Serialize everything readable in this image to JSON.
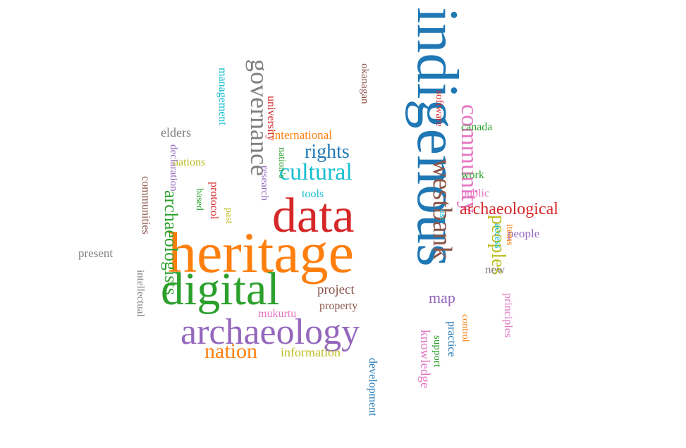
{
  "words": [
    {
      "text": "indigenous",
      "color": "#1f77b4",
      "vertical": true
    },
    {
      "text": "heritage",
      "color": "#ff7f0e",
      "vertical": false
    },
    {
      "text": "data",
      "color": "#d62728",
      "vertical": false
    },
    {
      "text": "digital",
      "color": "#2ca02c",
      "vertical": false
    },
    {
      "text": "archaeology",
      "color": "#9467bd",
      "vertical": false
    },
    {
      "text": "westbank",
      "color": "#8c564b",
      "vertical": true
    },
    {
      "text": "community",
      "color": "#e377c2",
      "vertical": true
    },
    {
      "text": "governance",
      "color": "#7f7f7f",
      "vertical": true
    },
    {
      "text": "peoples",
      "color": "#bcbd22",
      "vertical": true
    },
    {
      "text": "cultural",
      "color": "#17becf",
      "vertical": false
    },
    {
      "text": "rights",
      "color": "#1f77b4",
      "vertical": false
    },
    {
      "text": "nation",
      "color": "#ff7f0e",
      "vertical": false
    },
    {
      "text": "archaeologists",
      "color": "#2ca02c",
      "vertical": true
    },
    {
      "text": "archaeological",
      "color": "#d62728",
      "vertical": false
    },
    {
      "text": "map",
      "color": "#9467bd",
      "vertical": false
    },
    {
      "text": "project",
      "color": "#8c564b",
      "vertical": false
    },
    {
      "text": "knowledge",
      "color": "#e377c2",
      "vertical": true
    },
    {
      "text": "new",
      "color": "#7f7f7f",
      "vertical": false
    },
    {
      "text": "information",
      "color": "#bcbd22",
      "vertical": false
    },
    {
      "text": "management",
      "color": "#17becf",
      "vertical": true
    },
    {
      "text": "development",
      "color": "#1f77b4",
      "vertical": true
    },
    {
      "text": "international",
      "color": "#ff7f0e",
      "vertical": false
    },
    {
      "text": "support",
      "color": "#2ca02c",
      "vertical": true
    },
    {
      "text": "university",
      "color": "#d62728",
      "vertical": true
    },
    {
      "text": "people",
      "color": "#9467bd",
      "vertical": false
    },
    {
      "text": "property",
      "color": "#8c564b",
      "vertical": false
    },
    {
      "text": "principles",
      "color": "#e377c2",
      "vertical": true
    },
    {
      "text": "elders",
      "color": "#7f7f7f",
      "vertical": false
    },
    {
      "text": "nations",
      "color": "#bcbd22",
      "vertical": false
    },
    {
      "text": "access",
      "color": "#17becf",
      "vertical": true
    },
    {
      "text": "practice",
      "color": "#1f77b4",
      "vertical": true
    },
    {
      "text": "control",
      "color": "#ff7f0e",
      "vertical": true
    },
    {
      "text": "work",
      "color": "#2ca02c",
      "vertical": false
    },
    {
      "text": "software",
      "color": "#d62728",
      "vertical": true
    },
    {
      "text": "research",
      "color": "#9467bd",
      "vertical": true
    },
    {
      "text": "okanagan",
      "color": "#8c564b",
      "vertical": true
    },
    {
      "text": "public",
      "color": "#e377c2",
      "vertical": false
    },
    {
      "text": "present",
      "color": "#7f7f7f",
      "vertical": false
    },
    {
      "text": "past",
      "color": "#bcbd22",
      "vertical": true
    },
    {
      "text": "tools",
      "color": "#17becf",
      "vertical": false
    },
    {
      "text": "canada",
      "color": "#2ca02c",
      "vertical": false
    },
    {
      "text": "items",
      "color": "#ff7f0e",
      "vertical": true
    },
    {
      "text": "nation’s",
      "color": "#2ca02c",
      "vertical": true
    },
    {
      "text": "protocol",
      "color": "#d62728",
      "vertical": true
    },
    {
      "text": "declaration",
      "color": "#9467bd",
      "vertical": true
    },
    {
      "text": "communities",
      "color": "#8c564b",
      "vertical": true
    },
    {
      "text": "mukurtu",
      "color": "#e377c2",
      "vertical": false
    },
    {
      "text": "intellectual",
      "color": "#7f7f7f",
      "vertical": true
    },
    {
      "text": "use",
      "color": "#17becf",
      "vertical": true
    },
    {
      "text": "based",
      "color": "#2ca02c",
      "vertical": true
    }
  ]
}
